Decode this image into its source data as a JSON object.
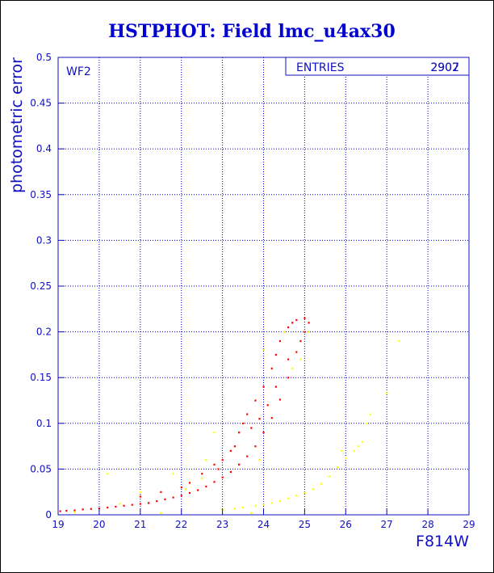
{
  "chart_data": {
    "type": "scatter",
    "title": "HSTPHOT: Field lmc_u4ax30",
    "xlabel": "F814W",
    "ylabel": "photometric error",
    "xlim": [
      19,
      29
    ],
    "ylim": [
      0,
      0.5
    ],
    "x_ticks": [
      "19",
      "20",
      "21",
      "22",
      "23",
      "24",
      "25",
      "26",
      "27",
      "28",
      "29"
    ],
    "y_ticks": [
      "0",
      "0.05",
      "0.1",
      "0.15",
      "0.2",
      "0.25",
      "0.3",
      "0.35",
      "0.4",
      "0.45",
      "0.5"
    ],
    "grid": true,
    "chip_label": "WF2",
    "stats": {
      "label": "ENTRIES",
      "values": [
        "2907",
        "2902"
      ]
    },
    "colors": {
      "primary": "#ff0000",
      "secondary": "#ffff00",
      "axes": "#1010c0",
      "grid": "#0000c0"
    },
    "series": [
      {
        "color": "#ff0000",
        "points": [
          [
            19.05,
            0.004
          ],
          [
            19.2,
            0.0045
          ],
          [
            19.4,
            0.005
          ],
          [
            19.6,
            0.006
          ],
          [
            19.8,
            0.0065
          ],
          [
            20.0,
            0.007
          ],
          [
            20.2,
            0.008
          ],
          [
            20.4,
            0.009
          ],
          [
            20.6,
            0.01
          ],
          [
            20.8,
            0.011
          ],
          [
            21.0,
            0.012
          ],
          [
            21.2,
            0.013
          ],
          [
            21.4,
            0.015
          ],
          [
            21.6,
            0.017
          ],
          [
            21.8,
            0.019
          ],
          [
            22.0,
            0.021
          ],
          [
            22.2,
            0.024
          ],
          [
            22.4,
            0.027
          ],
          [
            22.6,
            0.031
          ],
          [
            22.8,
            0.036
          ],
          [
            23.0,
            0.041
          ],
          [
            23.2,
            0.047
          ],
          [
            23.4,
            0.055
          ],
          [
            23.6,
            0.064
          ],
          [
            23.8,
            0.075
          ],
          [
            24.0,
            0.09
          ],
          [
            24.2,
            0.106
          ],
          [
            24.4,
            0.126
          ],
          [
            24.6,
            0.15
          ],
          [
            24.8,
            0.178
          ],
          [
            24.9,
            0.19
          ],
          [
            25.0,
            0.2
          ],
          [
            25.1,
            0.21
          ],
          [
            22.0,
            0.03
          ],
          [
            22.5,
            0.045
          ],
          [
            22.8,
            0.055
          ],
          [
            23.0,
            0.06
          ],
          [
            23.2,
            0.07
          ],
          [
            23.4,
            0.09
          ],
          [
            23.5,
            0.1
          ],
          [
            23.6,
            0.11
          ],
          [
            23.8,
            0.125
          ],
          [
            24.0,
            0.14
          ],
          [
            24.2,
            0.16
          ],
          [
            24.3,
            0.175
          ],
          [
            24.4,
            0.19
          ],
          [
            24.5,
            0.2
          ],
          [
            24.6,
            0.205
          ],
          [
            24.7,
            0.21
          ],
          [
            24.8,
            0.213
          ],
          [
            25.0,
            0.215
          ],
          [
            21.0,
            0.02
          ],
          [
            21.5,
            0.025
          ],
          [
            22.2,
            0.035
          ],
          [
            22.9,
            0.05
          ],
          [
            23.3,
            0.075
          ],
          [
            23.7,
            0.095
          ],
          [
            24.1,
            0.12
          ],
          [
            24.6,
            0.17
          ],
          [
            24.3,
            0.14
          ],
          [
            23.9,
            0.105
          ]
        ]
      },
      {
        "color": "#ffff00",
        "points": [
          [
            19.4,
            0.003
          ],
          [
            20.5,
            0.012
          ],
          [
            21.0,
            0.025
          ],
          [
            21.5,
            0.002
          ],
          [
            22.1,
            0.028
          ],
          [
            22.5,
            0.04
          ],
          [
            22.6,
            0.06
          ],
          [
            23.0,
            0.006
          ],
          [
            23.3,
            0.007
          ],
          [
            23.5,
            0.008
          ],
          [
            23.8,
            0.01
          ],
          [
            24.0,
            0.011
          ],
          [
            24.2,
            0.013
          ],
          [
            24.4,
            0.015
          ],
          [
            24.6,
            0.018
          ],
          [
            24.8,
            0.021
          ],
          [
            25.0,
            0.024
          ],
          [
            25.2,
            0.028
          ],
          [
            25.4,
            0.034
          ],
          [
            25.6,
            0.042
          ],
          [
            25.8,
            0.052
          ],
          [
            26.0,
            0.062
          ],
          [
            26.2,
            0.07
          ],
          [
            26.3,
            0.075
          ],
          [
            26.5,
            0.1
          ],
          [
            26.6,
            0.11
          ],
          [
            27.0,
            0.133
          ],
          [
            27.3,
            0.19
          ],
          [
            25.9,
            0.07
          ],
          [
            26.4,
            0.08
          ],
          [
            24.5,
            0.2
          ],
          [
            25.1,
            0.2
          ],
          [
            24.9,
            0.17
          ],
          [
            24.7,
            0.16
          ],
          [
            24.0,
            0.18
          ],
          [
            23.9,
            0.06
          ],
          [
            22.8,
            0.09
          ],
          [
            21.8,
            0.045
          ],
          [
            20.2,
            0.045
          ],
          [
            23.7,
            0.002
          ]
        ]
      }
    ]
  }
}
